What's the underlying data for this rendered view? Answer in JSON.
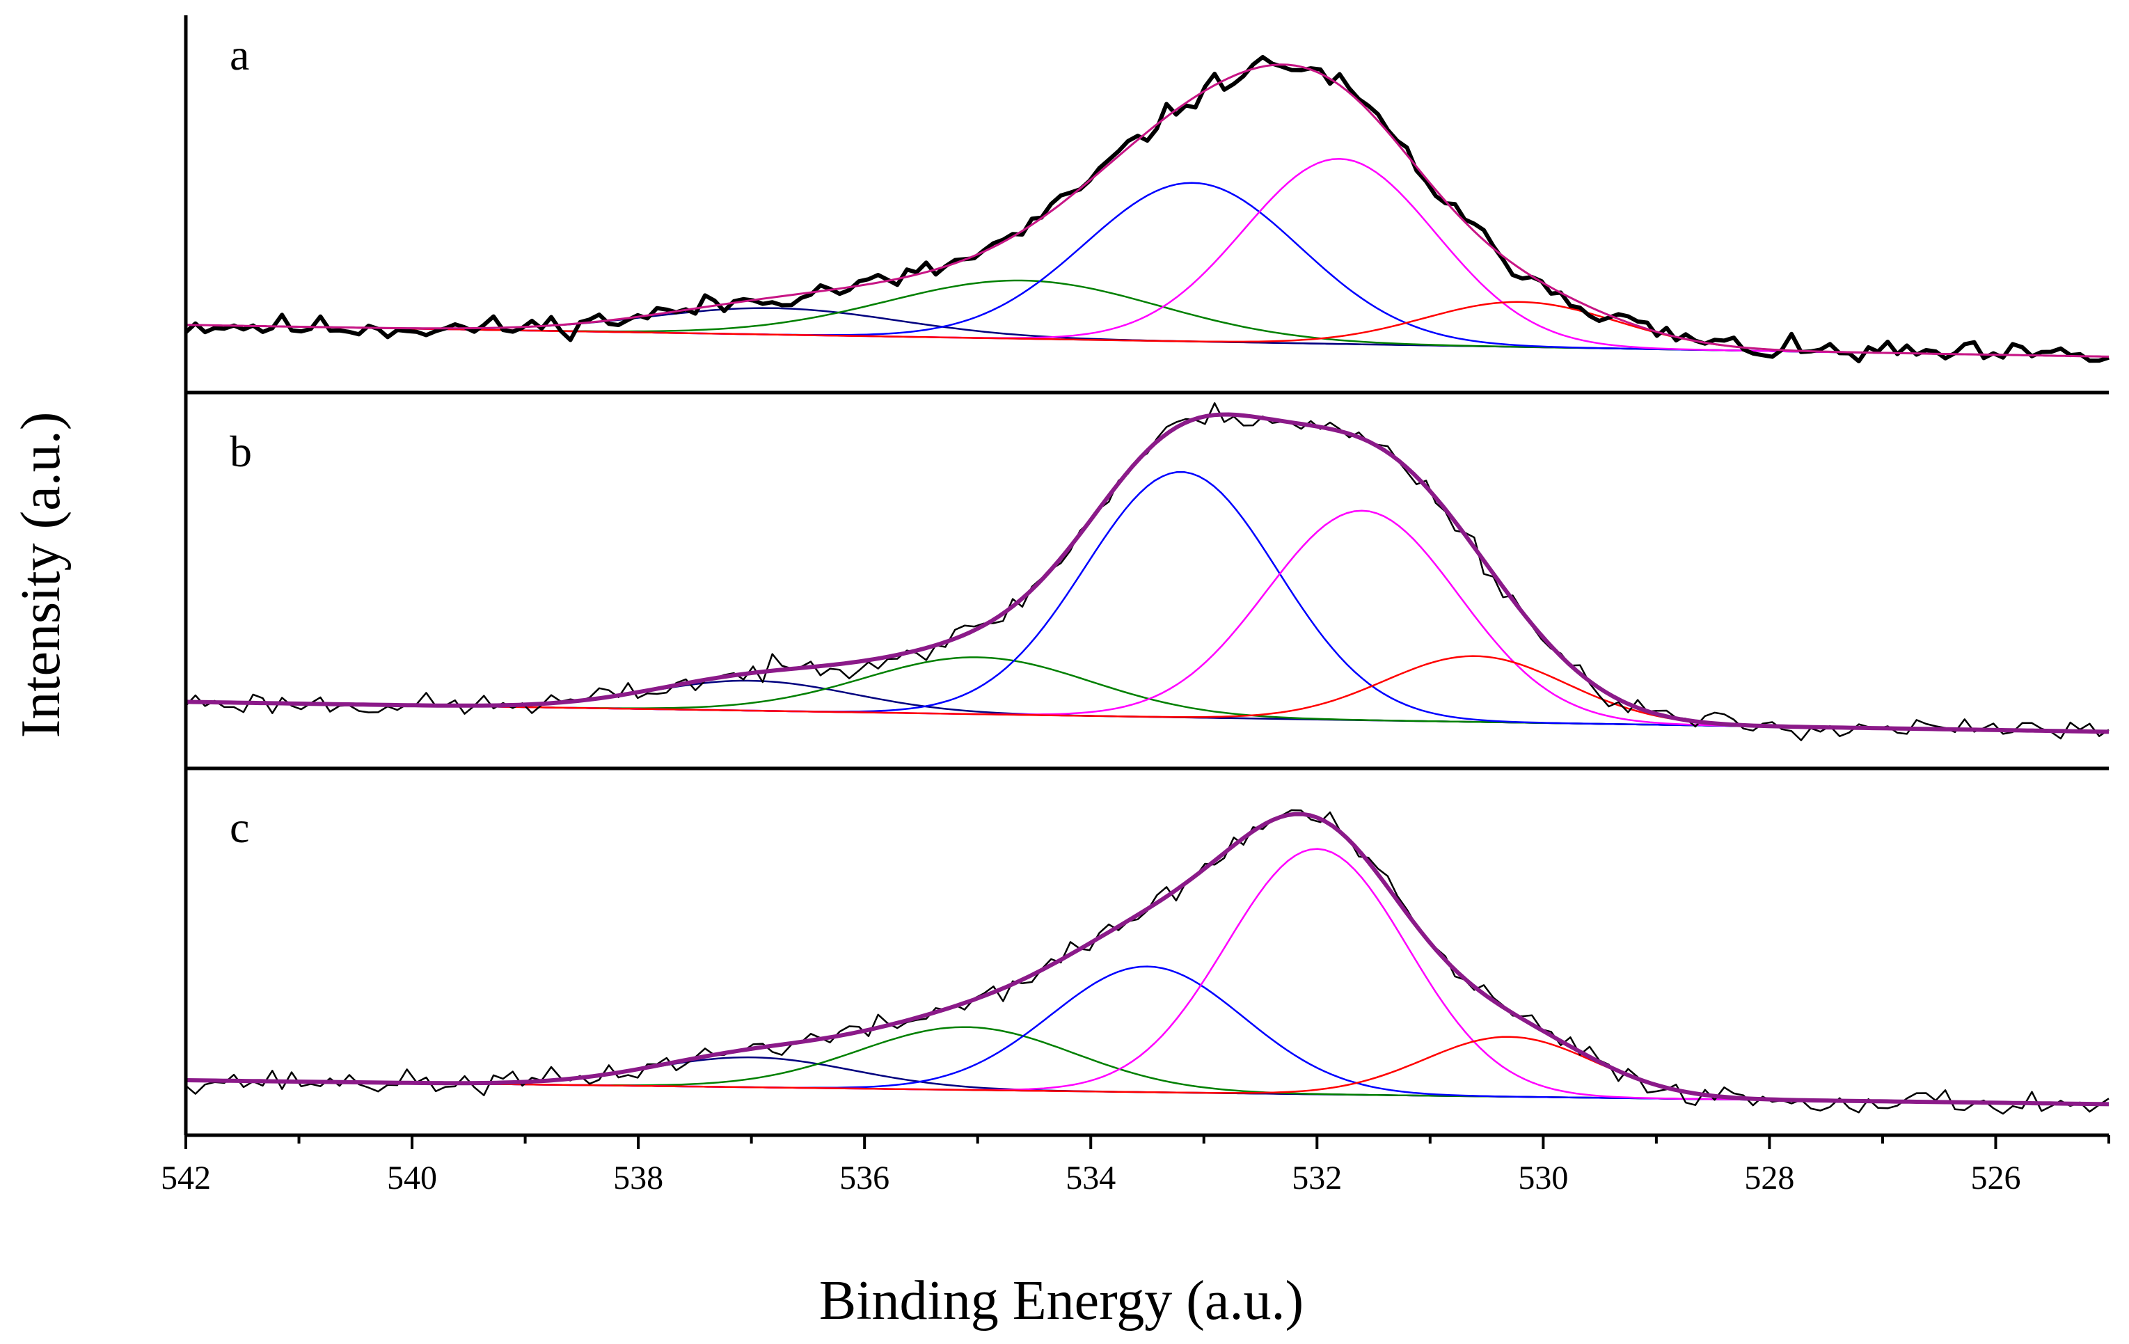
{
  "chart_data": {
    "type": "line",
    "title": "",
    "xlabel": "Binding Energy (a.u.)",
    "ylabel": "Intensity (a.u.)",
    "xlim": [
      542,
      525
    ],
    "x_reversed": true,
    "x_ticks": [
      542,
      540,
      538,
      536,
      534,
      532,
      530,
      528,
      526
    ],
    "x_ticks_minor": [
      541,
      539,
      537,
      535,
      533,
      531,
      529,
      527,
      525
    ],
    "y_tick_labels": false,
    "grid": false,
    "legend": "none",
    "panels": [
      {
        "label": "a",
        "background": {
          "start": 0.14,
          "end": 0.02
        },
        "peaks": [
          {
            "center": 536.8,
            "height": 0.1,
            "sigma": 1.1,
            "color": "#00007f"
          },
          {
            "center": 534.6,
            "height": 0.22,
            "sigma": 1.2,
            "color": "#008000"
          },
          {
            "center": 533.1,
            "height": 0.6,
            "sigma": 0.95,
            "color": "#0000ff"
          },
          {
            "center": 531.8,
            "height": 0.7,
            "sigma": 0.85,
            "color": "#ff00ff"
          },
          {
            "center": 530.2,
            "height": 0.17,
            "sigma": 0.85,
            "color": "#ff0000"
          }
        ],
        "envelope_color": "#c71585",
        "raw_color": "#000000",
        "raw_bold": true,
        "noise": 0.022,
        "seed": 11
      },
      {
        "label": "b",
        "background": {
          "start": 0.12,
          "end": 0.02
        },
        "peaks": [
          {
            "center": 537.0,
            "height": 0.1,
            "sigma": 0.9,
            "color": "#00007f"
          },
          {
            "center": 535.0,
            "height": 0.19,
            "sigma": 1.0,
            "color": "#008000"
          },
          {
            "center": 533.2,
            "height": 0.82,
            "sigma": 0.85,
            "color": "#0000ff"
          },
          {
            "center": 531.6,
            "height": 0.7,
            "sigma": 0.85,
            "color": "#ff00ff"
          },
          {
            "center": 530.6,
            "height": 0.22,
            "sigma": 0.8,
            "color": "#ff0000"
          }
        ],
        "envelope_color": "#8b1a89",
        "raw_color": "#000000",
        "raw_bold": false,
        "noise": 0.02,
        "seed": 23
      },
      {
        "label": "c",
        "background": {
          "start": 0.1,
          "end": 0.02
        },
        "peaks": [
          {
            "center": 537.0,
            "height": 0.1,
            "sigma": 0.9,
            "color": "#00007f"
          },
          {
            "center": 535.1,
            "height": 0.21,
            "sigma": 0.95,
            "color": "#008000"
          },
          {
            "center": 533.5,
            "height": 0.42,
            "sigma": 0.85,
            "color": "#0000ff"
          },
          {
            "center": 532.0,
            "height": 0.82,
            "sigma": 0.8,
            "color": "#ff00ff"
          },
          {
            "center": 530.3,
            "height": 0.2,
            "sigma": 0.75,
            "color": "#ff0000"
          }
        ],
        "envelope_color": "#8b1a89",
        "raw_color": "#000000",
        "raw_bold": false,
        "noise": 0.02,
        "seed": 37
      }
    ]
  }
}
